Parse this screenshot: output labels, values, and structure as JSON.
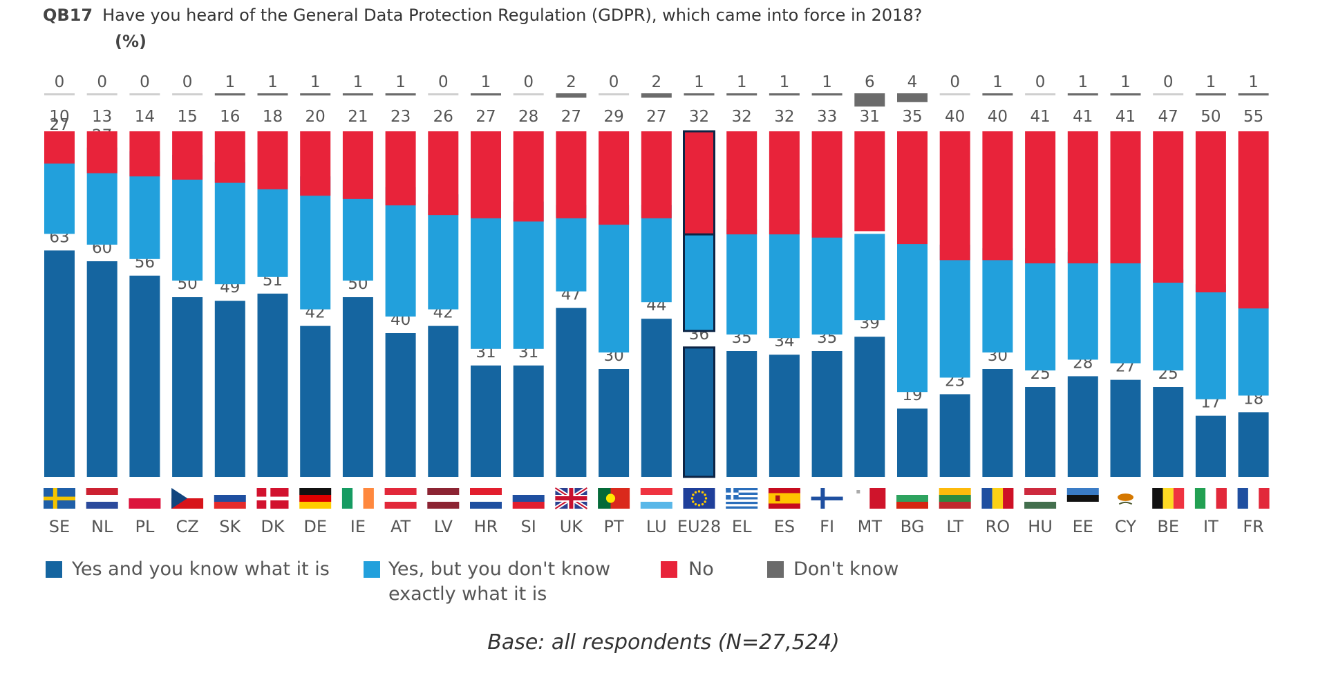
{
  "header": {
    "question_id": "QB17",
    "question": "Have you heard of the General Data Protection Regulation (GDPR), which came into force in 2018?",
    "unit": "(%)"
  },
  "legend": [
    {
      "label": "Yes and you know what it is",
      "color": "#1565a0"
    },
    {
      "label": "Yes, but you don't know exactly what it is",
      "color": "#22a0dc"
    },
    {
      "label": "No",
      "color": "#e8233a"
    },
    {
      "label": "Don't know",
      "color": "#6b6b6b"
    }
  ],
  "footer": {
    "base": "Base: all respondents (N=27,524)"
  },
  "chart_data": {
    "type": "bar",
    "stacked": true,
    "categories": [
      "SE",
      "NL",
      "PL",
      "CZ",
      "SK",
      "DK",
      "DE",
      "IE",
      "AT",
      "LV",
      "HR",
      "SI",
      "UK",
      "PT",
      "LU",
      "EU28",
      "EL",
      "ES",
      "FI",
      "MT",
      "BG",
      "LT",
      "RO",
      "HU",
      "EE",
      "CY",
      "BE",
      "IT",
      "FR"
    ],
    "highlight": "EU28",
    "series": [
      {
        "name": "Yes and you know what it is",
        "color": "#1565a0",
        "values": [
          63,
          60,
          56,
          50,
          49,
          51,
          42,
          50,
          40,
          42,
          31,
          31,
          47,
          30,
          44,
          36,
          35,
          34,
          35,
          39,
          19,
          23,
          30,
          25,
          28,
          27,
          25,
          17,
          18
        ]
      },
      {
        "name": "Yes, but you don't know exactly what it is",
        "color": "#22a0dc",
        "values": [
          27,
          27,
          30,
          35,
          34,
          30,
          37,
          28,
          36,
          32,
          41,
          41,
          24,
          41,
          27,
          31,
          32,
          33,
          31,
          24,
          42,
          37,
          29,
          34,
          30,
          31,
          28,
          32,
          26
        ]
      },
      {
        "name": "No",
        "color": "#e8233a",
        "values": [
          10,
          13,
          14,
          15,
          16,
          18,
          20,
          21,
          23,
          26,
          27,
          28,
          27,
          29,
          27,
          32,
          32,
          32,
          33,
          31,
          35,
          40,
          40,
          41,
          41,
          41,
          47,
          50,
          55
        ]
      },
      {
        "name": "Don't know",
        "color": "#6b6b6b",
        "values": [
          0,
          0,
          0,
          0,
          1,
          1,
          1,
          1,
          1,
          0,
          1,
          0,
          2,
          0,
          2,
          1,
          1,
          1,
          1,
          6,
          4,
          0,
          1,
          0,
          1,
          1,
          0,
          1,
          1
        ]
      }
    ]
  }
}
